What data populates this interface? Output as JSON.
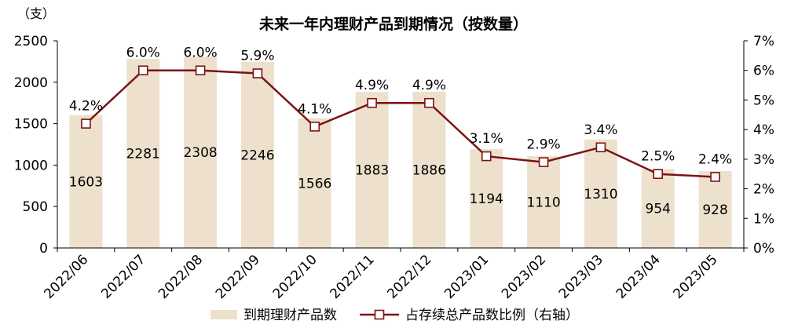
{
  "chart_data": {
    "type": "bar+line",
    "title": "未来一年内理财产品到期情况（按数量）",
    "y_left_unit": "（支）",
    "categories": [
      "2022/06",
      "2022/07",
      "2022/08",
      "2022/09",
      "2022/10",
      "2022/11",
      "2022/12",
      "2023/01",
      "2023/02",
      "2023/03",
      "2023/04",
      "2023/05"
    ],
    "series": [
      {
        "name": "到期理财产品数",
        "type": "bar",
        "axis": "left",
        "values": [
          1603,
          2281,
          2308,
          2246,
          1566,
          1883,
          1886,
          1194,
          1110,
          1310,
          954,
          928
        ],
        "value_labels": [
          "1603",
          "2281",
          "2308",
          "2246",
          "1566",
          "1883",
          "1886",
          "1194",
          "1110",
          "1310",
          "954",
          "928"
        ]
      },
      {
        "name": "占存续总产品数比例（右轴）",
        "type": "line",
        "axis": "right",
        "values": [
          4.2,
          6.0,
          6.0,
          5.9,
          4.1,
          4.9,
          4.9,
          3.1,
          2.9,
          3.4,
          2.5,
          2.4
        ],
        "value_labels": [
          "4.2%",
          "6.0%",
          "6.0%",
          "5.9%",
          "4.1%",
          "4.9%",
          "4.9%",
          "3.1%",
          "2.9%",
          "3.4%",
          "2.5%",
          "2.4%"
        ]
      }
    ],
    "y_left": {
      "min": 0,
      "max": 2500,
      "ticks": [
        "0",
        "500",
        "1000",
        "1500",
        "2000",
        "2500"
      ]
    },
    "y_right": {
      "min": 0,
      "max": 7,
      "ticks": [
        "0%",
        "1%",
        "2%",
        "3%",
        "4%",
        "5%",
        "6%",
        "7%"
      ]
    },
    "grid": false,
    "legend_position": "bottom",
    "colors": {
      "bar": "#ede1cd",
      "line": "#7b1316",
      "marker_fill": "#ffffff"
    }
  }
}
